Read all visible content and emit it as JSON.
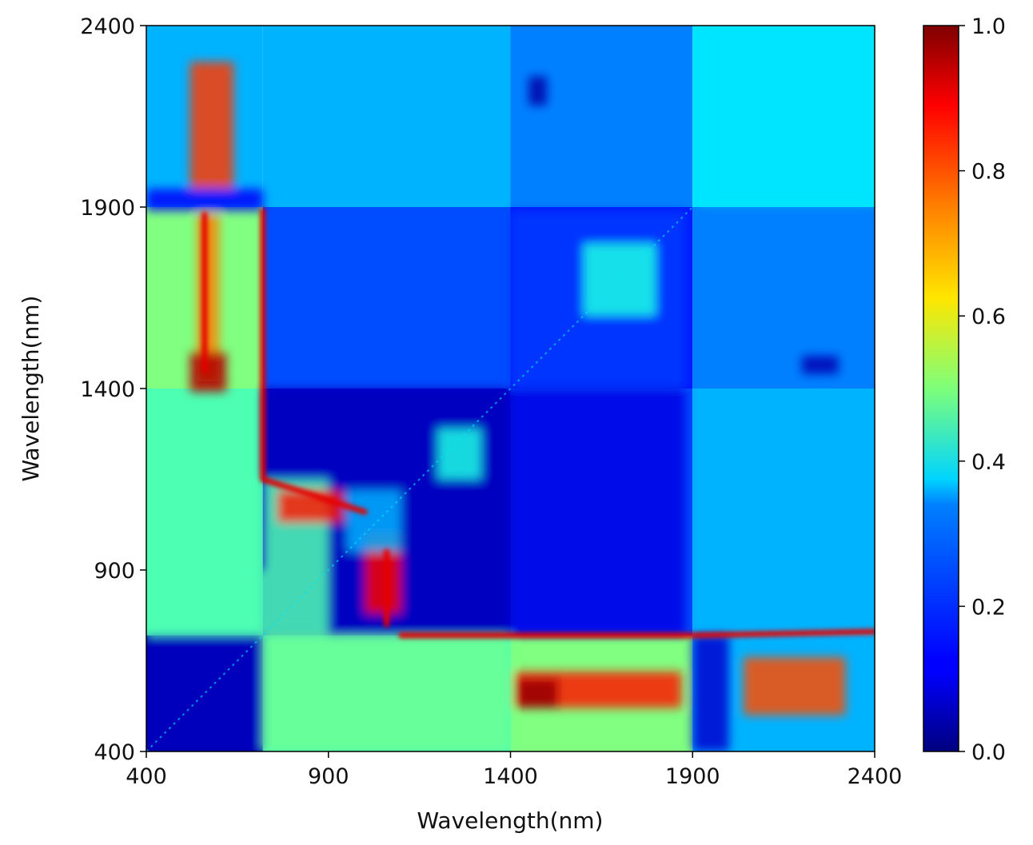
{
  "chart_data": {
    "type": "heatmap",
    "title": "",
    "xlabel": "Wavelength(nm)",
    "ylabel": "Wavelength(nm)",
    "xlim": [
      400,
      2400
    ],
    "ylim": [
      400,
      2400
    ],
    "x_ticks": [
      "400",
      "900",
      "1400",
      "1900",
      "2400"
    ],
    "y_ticks": [
      "400",
      "900",
      "1400",
      "1900",
      "2400"
    ],
    "colorbar": {
      "range": [
        0.0,
        1.0
      ],
      "ticks": [
        "0.0",
        "0.2",
        "0.4",
        "0.6",
        "0.8",
        "1.0"
      ],
      "colormap": "jet"
    },
    "matrix": {
      "description_x_bands_nm": [
        [
          400,
          720
        ],
        [
          720,
          1400
        ],
        [
          1400,
          1900
        ],
        [
          1900,
          2400
        ]
      ],
      "block_values": [
        [
          0.05,
          0.45,
          0.5,
          0.3
        ],
        [
          0.45,
          0.08,
          0.2,
          0.3
        ],
        [
          0.5,
          0.2,
          0.15,
          0.25
        ],
        [
          0.3,
          0.3,
          0.25,
          0.35
        ]
      ],
      "boundary_peak_value": 0.9
    }
  }
}
